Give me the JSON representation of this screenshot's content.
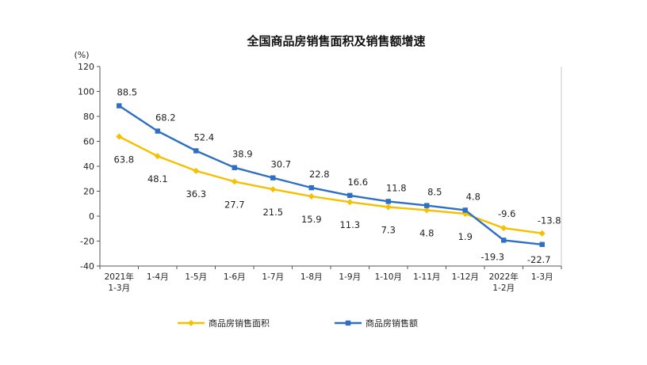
{
  "chart_data": {
    "type": "line",
    "title": "全国商品房销售面积及销售额增速",
    "ylabel": "(%)",
    "xlabel": "",
    "ylim": [
      -40,
      120
    ],
    "yticks": [
      "120",
      "100",
      "80",
      "60",
      "40",
      "20",
      "0",
      "-20",
      "-40"
    ],
    "grid": false,
    "legend_position": "bottom",
    "categories": [
      [
        "2021年",
        "1-3月"
      ],
      [
        "1-4月"
      ],
      [
        "1-5月"
      ],
      [
        "1-6月"
      ],
      [
        "1-7月"
      ],
      [
        "1-8月"
      ],
      [
        "1-9月"
      ],
      [
        "1-10月"
      ],
      [
        "1-11月"
      ],
      [
        "1-12月"
      ],
      [
        "2022年",
        "1-2月"
      ],
      [
        "1-3月"
      ]
    ],
    "series": [
      {
        "name": "商品房销售面积",
        "color": "#f5c000",
        "marker": "diamond",
        "values": [
          63.8,
          48.1,
          36.3,
          27.7,
          21.5,
          15.9,
          11.3,
          7.3,
          4.8,
          1.9,
          -9.6,
          -13.8
        ],
        "labels": [
          "63.8",
          "48.1",
          "36.3",
          "27.7",
          "21.5",
          "15.9",
          "11.3",
          "7.3",
          "4.8",
          "1.9",
          "-9.6",
          "-13.8"
        ]
      },
      {
        "name": "商品房销售额",
        "color": "#2e6fc6",
        "marker": "square",
        "values": [
          88.5,
          68.2,
          52.4,
          38.9,
          30.7,
          22.8,
          16.6,
          11.8,
          8.5,
          4.8,
          -19.3,
          -22.7
        ],
        "labels": [
          "88.5",
          "68.2",
          "52.4",
          "38.9",
          "30.7",
          "22.8",
          "16.6",
          "11.8",
          "8.5",
          "4.8",
          "-19.3",
          "-22.7"
        ]
      }
    ]
  }
}
